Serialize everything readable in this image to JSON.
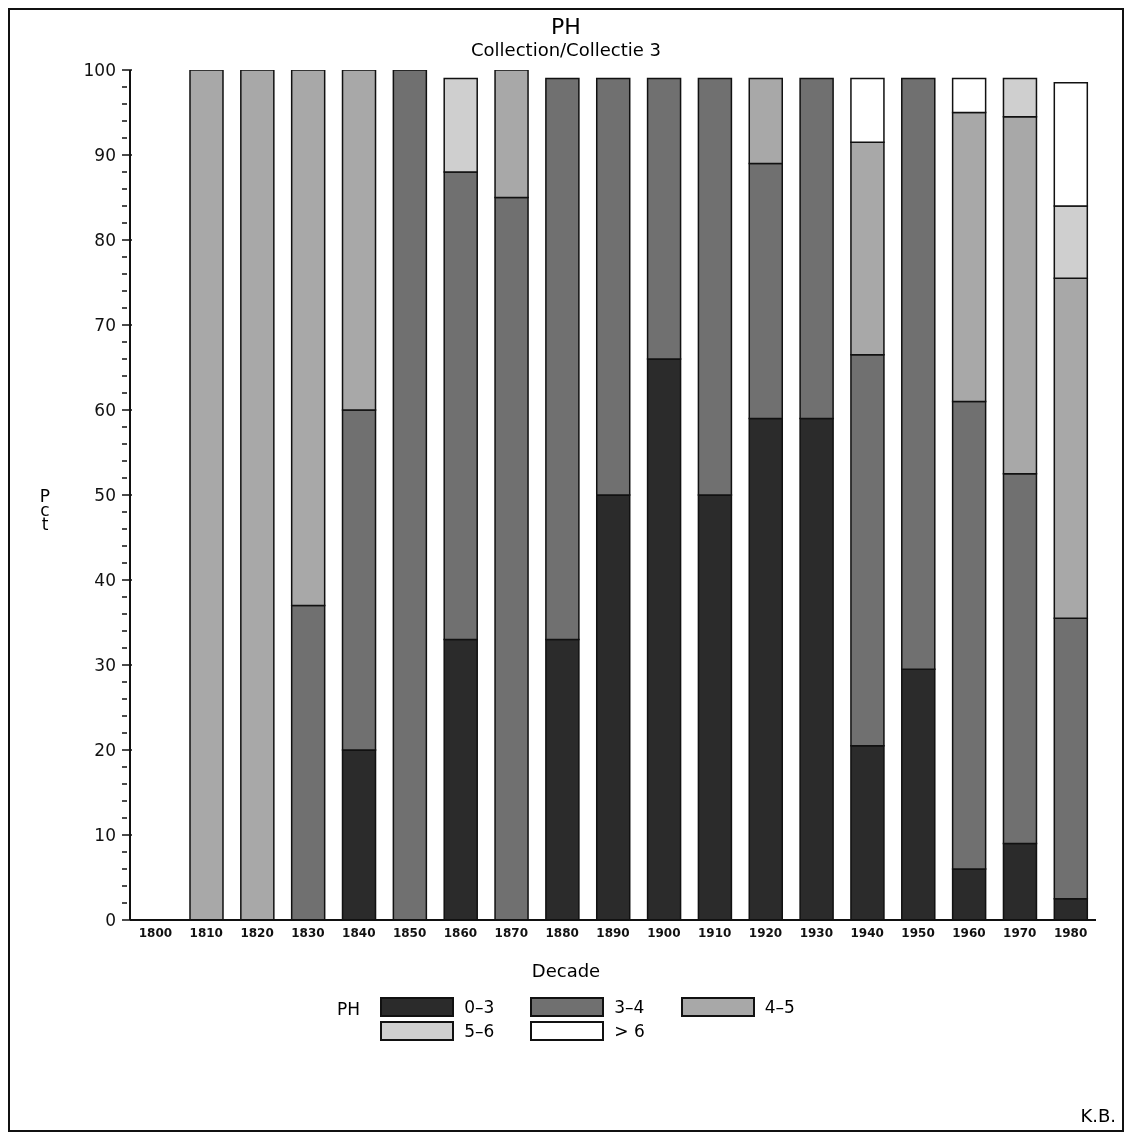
{
  "chart_data": {
    "type": "bar",
    "stacked": true,
    "title": "PH",
    "subtitle": "Collection/Collectie 3",
    "xlabel": "Decade",
    "ylabel": "Pct",
    "legend_title": "PH",
    "legend": "bottom",
    "annotations": [
      "K.B."
    ],
    "categories": [
      "1800",
      "1810",
      "1820",
      "1830",
      "1840",
      "1850",
      "1860",
      "1870",
      "1880",
      "1890",
      "1900",
      "1910",
      "1920",
      "1930",
      "1940",
      "1950",
      "1960",
      "1970",
      "1980"
    ],
    "series": [
      {
        "name": "0–3",
        "color": "#2b2b2b",
        "values": [
          null,
          null,
          null,
          null,
          20,
          null,
          33,
          null,
          33,
          50,
          66,
          50,
          59,
          59,
          20.5,
          29.5,
          6,
          9,
          2.5
        ]
      },
      {
        "name": "3–4",
        "color": "#707070",
        "values": [
          null,
          null,
          null,
          37,
          40,
          100,
          55,
          85,
          66,
          49,
          33,
          49,
          30,
          40,
          46,
          69.5,
          55,
          43.5,
          33
        ]
      },
      {
        "name": "4–5",
        "color": "#a8a8a8",
        "values": [
          null,
          100,
          100,
          63,
          40,
          null,
          null,
          15,
          null,
          null,
          null,
          null,
          10,
          null,
          25,
          null,
          34,
          42,
          40
        ]
      },
      {
        "name": "5–6",
        "color": "#cfcfcf",
        "values": [
          null,
          null,
          null,
          null,
          null,
          null,
          11,
          null,
          null,
          null,
          null,
          null,
          null,
          null,
          null,
          null,
          null,
          4.5,
          8.5
        ]
      },
      {
        "name": "> 6",
        "color": "#ffffff",
        "values": [
          null,
          null,
          null,
          null,
          null,
          null,
          null,
          null,
          null,
          null,
          null,
          null,
          null,
          null,
          7.5,
          null,
          4,
          null,
          14.5
        ]
      }
    ],
    "ylim": [
      0,
      100
    ],
    "yticks": [
      0,
      {
        "value": 2,
        "label": null
      },
      {
        "value": 4,
        "label": null
      },
      {
        "value": 6,
        "label": null
      },
      {
        "value": 8,
        "label": null
      },
      10,
      {
        "value": 12,
        "label": null
      },
      {
        "value": 14,
        "label": null
      },
      {
        "value": 16,
        "label": null
      },
      {
        "value": 18,
        "label": null
      },
      20,
      {
        "value": 22,
        "label": null
      },
      {
        "value": 24,
        "label": null
      },
      {
        "value": 26,
        "label": null
      },
      {
        "value": 28,
        "label": null
      },
      30,
      {
        "value": 32,
        "label": null
      },
      {
        "value": 34,
        "label": null
      },
      {
        "value": 36,
        "label": null
      },
      {
        "value": 38,
        "label": null
      },
      40,
      {
        "value": 42,
        "label": null
      },
      {
        "value": 44,
        "label": null
      },
      {
        "value": 46,
        "label": null
      },
      {
        "value": 48,
        "label": null
      },
      50,
      {
        "value": 52,
        "label": null
      },
      {
        "value": 54,
        "label": null
      },
      {
        "value": 56,
        "label": null
      },
      {
        "value": 58,
        "label": null
      },
      60,
      {
        "value": 62,
        "label": null
      },
      {
        "value": 64,
        "label": null
      },
      {
        "value": 66,
        "label": null
      },
      {
        "value": 68,
        "label": null
      },
      70,
      {
        "value": 72,
        "label": null
      },
      {
        "value": 74,
        "label": null
      },
      {
        "value": 76,
        "label": null
      },
      {
        "value": 78,
        "label": null
      },
      80,
      {
        "value": 82,
        "label": null
      },
      {
        "value": 84,
        "label": null
      },
      {
        "value": 86,
        "label": null
      },
      {
        "value": 88,
        "label": null
      },
      90,
      {
        "value": 92,
        "label": null
      },
      {
        "value": 94,
        "label": null
      },
      {
        "value": 96,
        "label": null
      },
      {
        "value": 98,
        "label": null
      },
      100
    ]
  }
}
